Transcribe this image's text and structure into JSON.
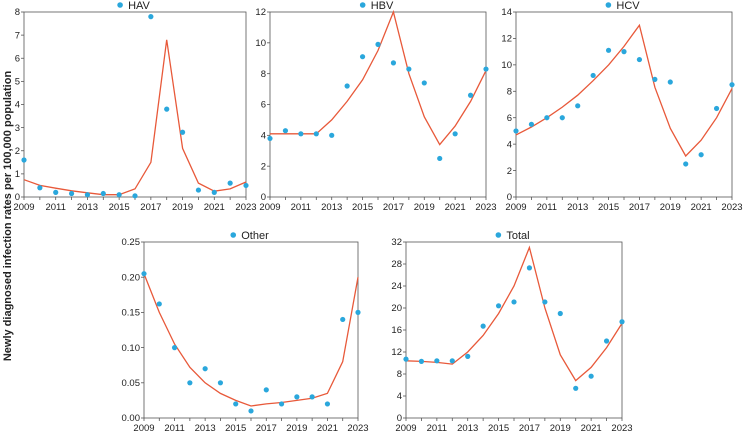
{
  "figure": {
    "ylabel": "Newly diagnosed infection rates per 100,000 population"
  },
  "colors": {
    "points": "#2aa7dc",
    "line": "#e8593a",
    "axis": "#555555"
  },
  "chart_data": [
    {
      "type": "scatter",
      "title": "HAV",
      "ylim": [
        0,
        8
      ],
      "yticks": [
        0,
        1,
        2,
        3,
        4,
        5,
        6,
        7,
        8
      ],
      "xlim": [
        2009,
        2023
      ],
      "xticks": [
        "2009",
        "2011",
        "2013",
        "2015",
        "2017",
        "2019",
        "2021",
        "2023"
      ],
      "points": [
        [
          2009,
          1.6
        ],
        [
          2010,
          0.4
        ],
        [
          2011,
          0.2
        ],
        [
          2012,
          0.15
        ],
        [
          2013,
          0.1
        ],
        [
          2014,
          0.15
        ],
        [
          2015,
          0.1
        ],
        [
          2016,
          0.05
        ],
        [
          2017,
          7.8
        ],
        [
          2018,
          3.8
        ],
        [
          2019,
          2.8
        ],
        [
          2020,
          0.3
        ],
        [
          2021,
          0.2
        ],
        [
          2022,
          0.6
        ],
        [
          2023,
          0.5
        ]
      ],
      "trend": [
        [
          2009,
          0.75
        ],
        [
          2010,
          0.5
        ],
        [
          2011,
          0.38
        ],
        [
          2012,
          0.27
        ],
        [
          2013,
          0.18
        ],
        [
          2014,
          0.1
        ],
        [
          2015,
          0.1
        ],
        [
          2016,
          0.35
        ],
        [
          2017,
          1.5
        ],
        [
          2018,
          6.8
        ],
        [
          2019,
          2.1
        ],
        [
          2020,
          0.6
        ],
        [
          2021,
          0.25
        ],
        [
          2022,
          0.35
        ],
        [
          2023,
          0.65
        ]
      ]
    },
    {
      "type": "scatter",
      "title": "HBV",
      "ylim": [
        0,
        12
      ],
      "yticks": [
        0,
        2,
        4,
        6,
        8,
        10,
        12
      ],
      "xlim": [
        2009,
        2023
      ],
      "xticks": [
        "2009",
        "2011",
        "2013",
        "2015",
        "2017",
        "2019",
        "2021",
        "2023"
      ],
      "points": [
        [
          2009,
          3.8
        ],
        [
          2010,
          4.3
        ],
        [
          2011,
          4.1
        ],
        [
          2012,
          4.1
        ],
        [
          2013,
          4.0
        ],
        [
          2014,
          7.2
        ],
        [
          2015,
          9.1
        ],
        [
          2016,
          9.9
        ],
        [
          2017,
          8.7
        ],
        [
          2018,
          8.3
        ],
        [
          2019,
          7.4
        ],
        [
          2020,
          2.5
        ],
        [
          2021,
          4.1
        ],
        [
          2022,
          6.6
        ],
        [
          2023,
          8.3
        ]
      ],
      "trend": [
        [
          2009,
          4.1
        ],
        [
          2010,
          4.1
        ],
        [
          2011,
          4.1
        ],
        [
          2012,
          4.1
        ],
        [
          2013,
          5.0
        ],
        [
          2014,
          6.2
        ],
        [
          2015,
          7.6
        ],
        [
          2016,
          9.5
        ],
        [
          2017,
          12.0
        ],
        [
          2018,
          8.0
        ],
        [
          2019,
          5.2
        ],
        [
          2020,
          3.4
        ],
        [
          2021,
          4.6
        ],
        [
          2022,
          6.2
        ],
        [
          2023,
          8.2
        ]
      ]
    },
    {
      "type": "scatter",
      "title": "HCV",
      "ylim": [
        0,
        14
      ],
      "yticks": [
        0,
        2,
        4,
        6,
        8,
        10,
        12,
        14
      ],
      "xlim": [
        2009,
        2023
      ],
      "xticks": [
        "2009",
        "2011",
        "2013",
        "2015",
        "2017",
        "2019",
        "2021",
        "2023"
      ],
      "points": [
        [
          2009,
          5.0
        ],
        [
          2010,
          5.5
        ],
        [
          2011,
          6.0
        ],
        [
          2012,
          6.0
        ],
        [
          2013,
          6.9
        ],
        [
          2014,
          9.2
        ],
        [
          2015,
          11.1
        ],
        [
          2016,
          11.0
        ],
        [
          2017,
          10.4
        ],
        [
          2018,
          8.9
        ],
        [
          2019,
          8.7
        ],
        [
          2020,
          2.5
        ],
        [
          2021,
          3.2
        ],
        [
          2022,
          6.7
        ],
        [
          2023,
          8.5
        ]
      ],
      "trend": [
        [
          2009,
          4.7
        ],
        [
          2010,
          5.3
        ],
        [
          2011,
          6.0
        ],
        [
          2012,
          6.8
        ],
        [
          2013,
          7.7
        ],
        [
          2014,
          8.8
        ],
        [
          2015,
          10.0
        ],
        [
          2016,
          11.4
        ],
        [
          2017,
          13.0
        ],
        [
          2018,
          8.3
        ],
        [
          2019,
          5.2
        ],
        [
          2020,
          3.1
        ],
        [
          2021,
          4.3
        ],
        [
          2022,
          6.0
        ],
        [
          2023,
          8.2
        ]
      ]
    },
    {
      "type": "scatter",
      "title": "Other",
      "ylim": [
        0,
        0.25
      ],
      "yticks": [
        "0.00",
        "0.05",
        "0.10",
        "0.15",
        "0.20",
        "0.25"
      ],
      "xlim": [
        2009,
        2023
      ],
      "xticks": [
        "2009",
        "2011",
        "2013",
        "2015",
        "2017",
        "2019",
        "2021",
        "2023"
      ],
      "points": [
        [
          2009,
          0.205
        ],
        [
          2010,
          0.162
        ],
        [
          2011,
          0.1
        ],
        [
          2012,
          0.05
        ],
        [
          2013,
          0.07
        ],
        [
          2014,
          0.05
        ],
        [
          2015,
          0.02
        ],
        [
          2016,
          0.01
        ],
        [
          2017,
          0.04
        ],
        [
          2018,
          0.02
        ],
        [
          2019,
          0.03
        ],
        [
          2020,
          0.03
        ],
        [
          2021,
          0.02
        ],
        [
          2022,
          0.14
        ],
        [
          2023,
          0.15
        ]
      ],
      "trend": [
        [
          2009,
          0.205
        ],
        [
          2010,
          0.15
        ],
        [
          2011,
          0.105
        ],
        [
          2012,
          0.072
        ],
        [
          2013,
          0.05
        ],
        [
          2014,
          0.035
        ],
        [
          2015,
          0.025
        ],
        [
          2016,
          0.017
        ],
        [
          2017,
          0.02
        ],
        [
          2018,
          0.022
        ],
        [
          2019,
          0.025
        ],
        [
          2020,
          0.028
        ],
        [
          2021,
          0.035
        ],
        [
          2022,
          0.08
        ],
        [
          2023,
          0.2
        ]
      ]
    },
    {
      "type": "scatter",
      "title": "Total",
      "ylim": [
        0,
        32
      ],
      "yticks": [
        0,
        4,
        8,
        12,
        16,
        20,
        24,
        28,
        32
      ],
      "xlim": [
        2009,
        2023
      ],
      "xticks": [
        "2009",
        "2011",
        "2013",
        "2015",
        "2017",
        "2019",
        "2021",
        "2023"
      ],
      "points": [
        [
          2009,
          10.7
        ],
        [
          2010,
          10.3
        ],
        [
          2011,
          10.4
        ],
        [
          2012,
          10.4
        ],
        [
          2013,
          11.2
        ],
        [
          2014,
          16.7
        ],
        [
          2015,
          20.4
        ],
        [
          2016,
          21.1
        ],
        [
          2017,
          27.3
        ],
        [
          2018,
          21.1
        ],
        [
          2019,
          19.0
        ],
        [
          2020,
          5.4
        ],
        [
          2021,
          7.6
        ],
        [
          2022,
          14.0
        ],
        [
          2023,
          17.5
        ]
      ],
      "trend": [
        [
          2009,
          10.4
        ],
        [
          2010,
          10.3
        ],
        [
          2011,
          10.1
        ],
        [
          2012,
          9.8
        ],
        [
          2013,
          12.0
        ],
        [
          2014,
          15.0
        ],
        [
          2015,
          19.0
        ],
        [
          2016,
          24.0
        ],
        [
          2017,
          31.0
        ],
        [
          2018,
          20.0
        ],
        [
          2019,
          11.5
        ],
        [
          2020,
          6.8
        ],
        [
          2021,
          9.2
        ],
        [
          2022,
          12.8
        ],
        [
          2023,
          17.2
        ]
      ]
    }
  ]
}
